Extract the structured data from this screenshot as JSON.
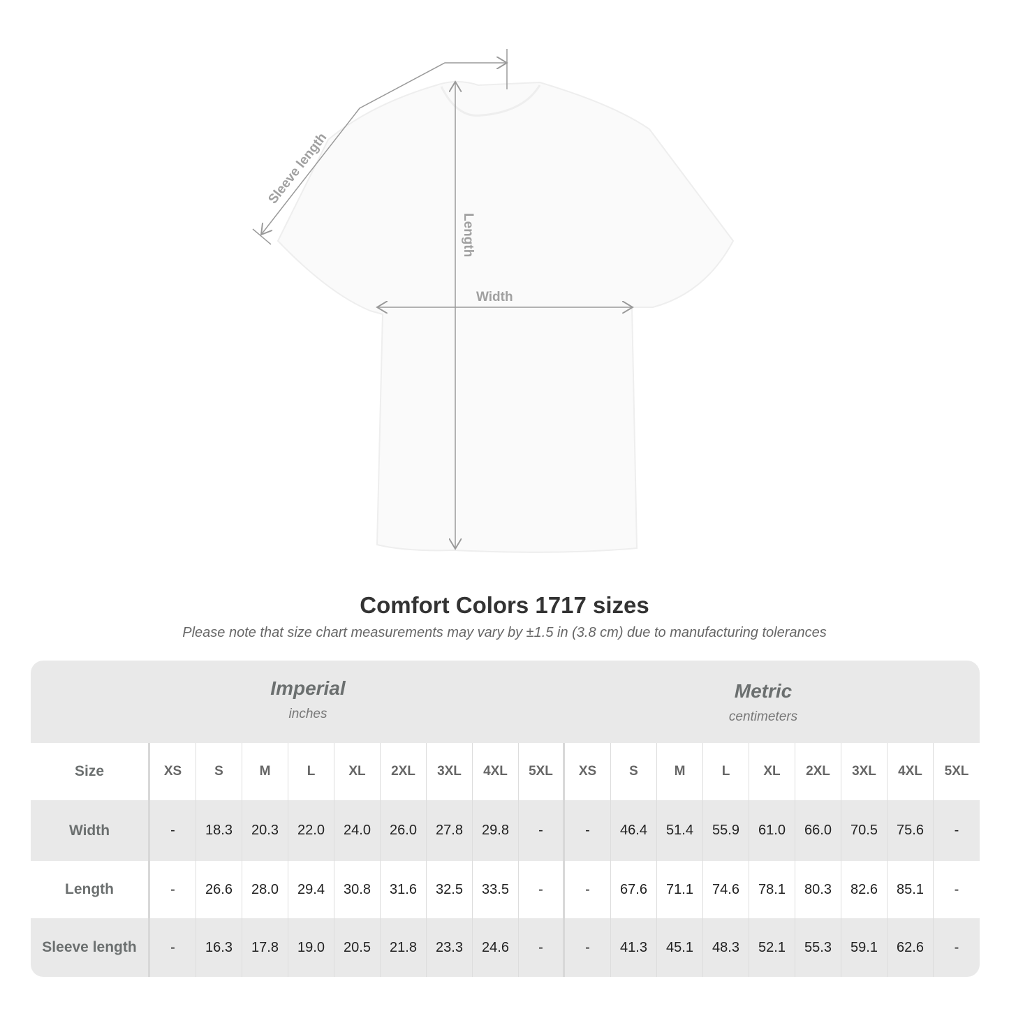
{
  "diagram": {
    "labels": {
      "sleeve": "Sleeve length",
      "length": "Length",
      "width": "Width"
    }
  },
  "title": "Comfort Colors 1717 sizes",
  "note": "Please note that size chart measurements may vary by ±1.5 in (3.8 cm) due to manufacturing tolerances",
  "table": {
    "groups": [
      {
        "name": "Imperial",
        "unit": "inches"
      },
      {
        "name": "Metric",
        "unit": "centimeters"
      }
    ],
    "size_label": "Size",
    "sizes": [
      "XS",
      "S",
      "M",
      "L",
      "XL",
      "2XL",
      "3XL",
      "4XL",
      "5XL",
      "XS",
      "S",
      "M",
      "L",
      "XL",
      "2XL",
      "3XL",
      "4XL",
      "5XL"
    ],
    "rows": [
      {
        "label": "Width",
        "values": [
          "-",
          "18.3",
          "20.3",
          "22.0",
          "24.0",
          "26.0",
          "27.8",
          "29.8",
          "-",
          "-",
          "46.4",
          "51.4",
          "55.9",
          "61.0",
          "66.0",
          "70.5",
          "75.6",
          "-"
        ]
      },
      {
        "label": "Length",
        "values": [
          "-",
          "26.6",
          "28.0",
          "29.4",
          "30.8",
          "31.6",
          "32.5",
          "33.5",
          "-",
          "-",
          "67.6",
          "71.1",
          "74.6",
          "78.1",
          "80.3",
          "82.6",
          "85.1",
          "-"
        ]
      },
      {
        "label": "Sleeve length",
        "values": [
          "-",
          "16.3",
          "17.8",
          "19.0",
          "20.5",
          "21.8",
          "23.3",
          "24.6",
          "-",
          "-",
          "41.3",
          "45.1",
          "48.3",
          "52.1",
          "55.3",
          "59.1",
          "62.6",
          "-"
        ]
      }
    ]
  }
}
